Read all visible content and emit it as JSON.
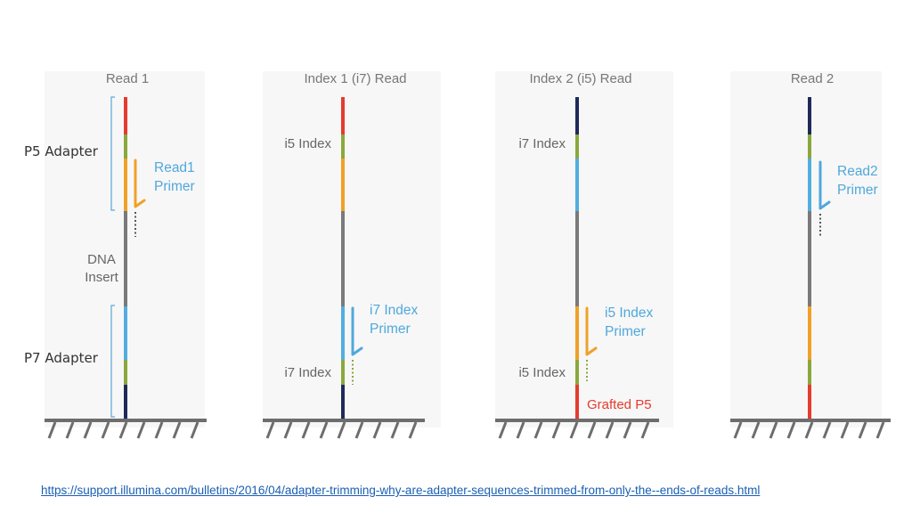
{
  "colors": {
    "red": "#e63b2e",
    "green": "#8aa83c",
    "orange": "#f0a128",
    "blue": "#52aee0",
    "gray": "#7a7a7a",
    "navy": "#1f2a5a",
    "primer_orange": "#f0a128",
    "primer_blue": "#4fa8dc",
    "ground": "#6d6d6d"
  },
  "panels": [
    {
      "title": "Read 1",
      "segments": [
        "red",
        "green",
        "orange",
        "gray",
        "blue",
        "green",
        "navy"
      ],
      "labels": [
        "DNA",
        "Insert"
      ],
      "brackets": [
        "P5 Adapter",
        "P7 Adapter"
      ],
      "primer": {
        "text": [
          "Read1",
          "Primer"
        ],
        "color": "primer_orange"
      }
    },
    {
      "title": "Index 1 (i7) Read",
      "segments": [
        "red",
        "green",
        "orange",
        "gray",
        "blue",
        "green",
        "navy"
      ],
      "labels": [
        "i5 Index",
        "i7 Index"
      ],
      "primer": {
        "text": [
          "i7 Index",
          "Primer"
        ],
        "color": "primer_blue"
      }
    },
    {
      "title": "Index 2 (i5) Read",
      "segments": [
        "navy",
        "green",
        "blue",
        "gray",
        "orange",
        "green",
        "red"
      ],
      "labels": [
        "i7 Index",
        "i5 Index",
        "Grafted P5"
      ],
      "primer": {
        "text": [
          "i5 Index",
          "Primer"
        ],
        "color": "primer_orange"
      }
    },
    {
      "title": "Read 2",
      "segments": [
        "navy",
        "green",
        "blue",
        "gray",
        "orange",
        "green",
        "red"
      ],
      "primer": {
        "text": [
          "Read2",
          "Primer"
        ],
        "color": "primer_blue"
      }
    }
  ],
  "source_url": "https://support.illumina.com/bulletins/2016/04/adapter-trimming-why-are-adapter-sequences-trimmed-from-only-the--ends-of-reads.html"
}
